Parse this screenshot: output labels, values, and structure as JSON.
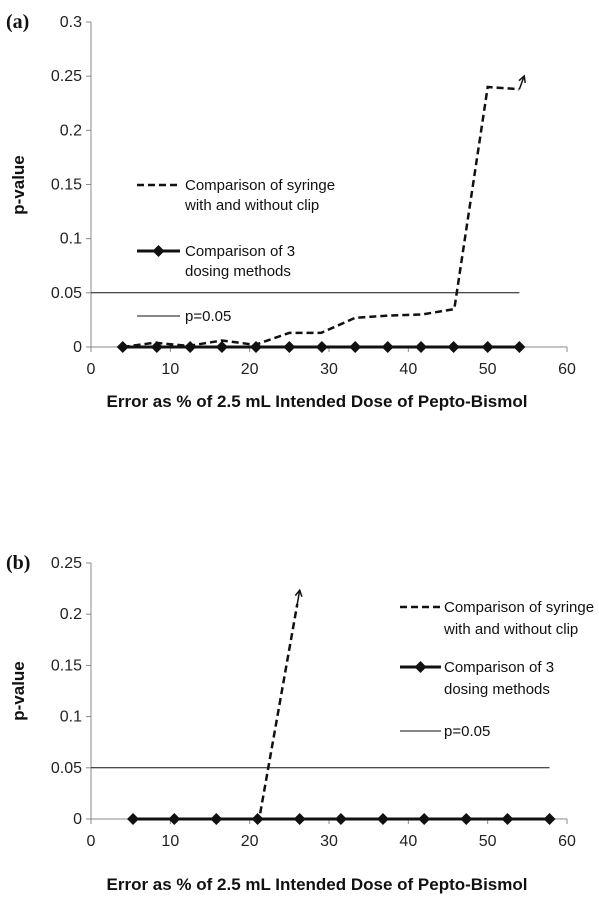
{
  "chart_data": [
    {
      "type": "line",
      "panel_label": "(a)",
      "xlabel": "Error as % of 2.5 mL Intended Dose of Pepto-Bismol",
      "ylabel": "p-value",
      "xlim": [
        0,
        60
      ],
      "ylim": [
        0,
        0.3
      ],
      "x_ticks": [
        "0",
        "10",
        "20",
        "30",
        "40",
        "50",
        "60"
      ],
      "y_ticks": [
        "0",
        "0.05",
        "0.1",
        "0.15",
        "0.2",
        "0.25",
        "0.3"
      ],
      "grid": false,
      "legend_position": "upper-left",
      "series": [
        {
          "name": "Comparison of syringe with and without clip",
          "legend_lines": [
            "Comparison of syringe",
            "with and without clip"
          ],
          "style": "dashed",
          "color": "#111111",
          "x": [
            4,
            8,
            12.3,
            16.5,
            20.7,
            25,
            29,
            33.3,
            37.5,
            41.7,
            45.8,
            50,
            54
          ],
          "y": [
            0,
            0.004,
            0.001,
            0.006,
            0.002,
            0.013,
            0.013,
            0.027,
            0.029,
            0.03,
            0.035,
            0.24,
            0.238
          ],
          "arrow": true
        },
        {
          "name": "Comparison of 3 dosing methods",
          "legend_lines": [
            "Comparison of 3",
            "dosing methods"
          ],
          "style": "solid-diamond",
          "color": "#111111",
          "x": [
            4,
            8.3,
            12.5,
            16.5,
            20.8,
            25,
            29.1,
            33.3,
            37.4,
            41.6,
            45.7,
            50,
            54
          ],
          "y": [
            0,
            0,
            0,
            0,
            0,
            0,
            0,
            0,
            0,
            0,
            0,
            0,
            0
          ]
        },
        {
          "name": "p=0.05",
          "legend_lines": [
            "p=0.05"
          ],
          "style": "thin",
          "color": "#111111",
          "x": [
            0,
            54
          ],
          "y": [
            0.05,
            0.05
          ]
        }
      ]
    },
    {
      "type": "line",
      "panel_label": "(b)",
      "xlabel": "Error as % of 2.5 mL Intended Dose of Pepto-Bismol",
      "ylabel": "p-value",
      "xlim": [
        0,
        60
      ],
      "ylim": [
        0,
        0.25
      ],
      "x_ticks": [
        "0",
        "10",
        "20",
        "30",
        "40",
        "50",
        "60"
      ],
      "y_ticks": [
        "0",
        "0.05",
        "0.1",
        "0.15",
        "0.2",
        "0.25"
      ],
      "grid": false,
      "legend_position": "upper-right",
      "series": [
        {
          "name": "Comparison of syringe with and without clip",
          "legend_lines": [
            "Comparison of syringe",
            "with and without clip"
          ],
          "style": "dashed",
          "color": "#111111",
          "x": [
            5.3,
            10.5,
            15.8,
            21.2,
            26
          ],
          "y": [
            0,
            0,
            0,
            0,
            0.21
          ],
          "arrow": true
        },
        {
          "name": "Comparison of 3 dosing methods",
          "legend_lines": [
            "Comparison of 3",
            "dosing methods"
          ],
          "style": "solid-diamond",
          "color": "#111111",
          "x": [
            5.3,
            10.5,
            15.8,
            21,
            26.3,
            31.5,
            36.8,
            42,
            47.3,
            52.5,
            57.8
          ],
          "y": [
            0,
            0,
            0,
            0,
            0,
            0,
            0,
            0,
            0,
            0,
            0
          ]
        },
        {
          "name": "p=0.05",
          "legend_lines": [
            "p=0.05"
          ],
          "style": "thin",
          "color": "#111111",
          "x": [
            0,
            57.8
          ],
          "y": [
            0.05,
            0.05
          ]
        }
      ]
    }
  ]
}
